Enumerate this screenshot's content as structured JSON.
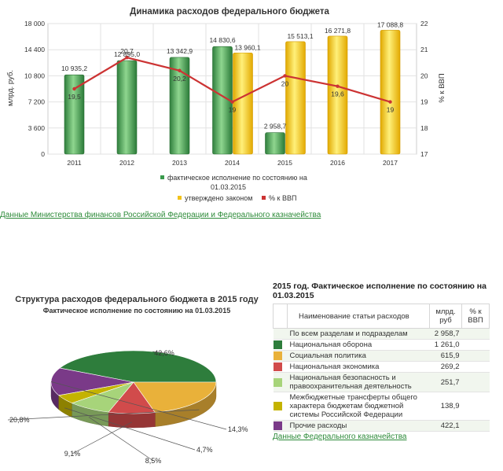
{
  "bar_chart": {
    "title": "Динамика расходов федерального бюджета",
    "ylabel_left": "млрд. руб.",
    "ylabel_right": "% к ВВП",
    "left_ticks": [
      "0",
      "3 600",
      "7 200",
      "10 800",
      "14 400",
      "18 000"
    ],
    "right_ticks": [
      "17",
      "18",
      "19",
      "20",
      "21",
      "22"
    ],
    "legend": {
      "actual": "фактическое исполнение по состоянию на 01.03.2015",
      "approved": "утверждено законом",
      "gdp": "% к ВВП"
    },
    "colors": {
      "actual": "#3a9a4c",
      "approved": "#f2c21a",
      "gdp": "#cc3333"
    }
  },
  "source_link_1": "Данные Министерства финансов Российской Федерации и Федерального казначейства",
  "pie_chart": {
    "title": "Структура расходов федерального бюджета в 2015 году",
    "subtitle": "Фактическое исполнение по состоянию на 01.03.2015"
  },
  "table": {
    "title": "2015 год. Фактическое исполнение по состоянию на 01.03.2015",
    "headers": {
      "name": "Наименование статьи расходов",
      "value": "млрд. руб",
      "pct": "% к ВВП"
    },
    "rows": [
      {
        "name": "По всем разделам и подразделам",
        "value": "2 958,7",
        "color": ""
      },
      {
        "name": "Национальная оборона",
        "value": "1 261,0",
        "color": "#2e7d3c"
      },
      {
        "name": "Социальная политика",
        "value": "615,9",
        "color": "#e9b13a"
      },
      {
        "name": "Национальная экономика",
        "value": "269,2",
        "color": "#d14b4b"
      },
      {
        "name": "Национальная безопасность и правоохранительная деятельность",
        "value": "251,7",
        "color": "#a7d47a"
      },
      {
        "name": "Межбюджетные трансферты общего характера бюджетам бюджетной системы Российской Федерации",
        "value": "138,9",
        "color": "#c4b300"
      },
      {
        "name": "Прочие расходы",
        "value": "422,1",
        "color": "#7a3a88"
      }
    ]
  },
  "source_link_2": "Данные Федерального казначейства",
  "chart_data": [
    {
      "type": "bar",
      "title": "Динамика расходов федерального бюджета",
      "categories": [
        "2011",
        "2012",
        "2013",
        "2014",
        "2015",
        "2016",
        "2017"
      ],
      "ylabel": "млрд. руб.",
      "y2label": "% к ВВП",
      "ylim": [
        0,
        18000
      ],
      "y2lim": [
        17,
        22
      ],
      "series": [
        {
          "name": "фактическое исполнение по состоянию на 01.03.2015",
          "kind": "bar",
          "values": [
            10935.2,
            12895.0,
            13342.9,
            14830.6,
            2958.7,
            null,
            null
          ],
          "labels": [
            "10 935,2",
            "12 895,0",
            "13 342,9",
            "14 830,6",
            "2 958,7",
            "",
            ""
          ]
        },
        {
          "name": "утверждено законом",
          "kind": "bar",
          "values": [
            null,
            null,
            null,
            13960.1,
            15513.1,
            16271.8,
            17088.8
          ],
          "labels": [
            "",
            "",
            "",
            "13 960,1",
            "15 513,1",
            "16 271,8",
            "17 088,8"
          ]
        },
        {
          "name": "% к ВВП",
          "kind": "line",
          "axis": "right",
          "values": [
            19.5,
            20.7,
            20.2,
            19,
            20,
            19.6,
            19
          ],
          "labels": [
            "19,5",
            "20,7",
            "20,2",
            "19",
            "20",
            "19,6",
            "19"
          ]
        }
      ],
      "grid": true,
      "legend_position": "bottom"
    },
    {
      "type": "pie",
      "title": "Структура расходов федерального бюджета в 2015 году",
      "subtitle": "Фактическое исполнение по состоянию на 01.03.2015",
      "slices": [
        {
          "label": "42,6%",
          "value": 42.6,
          "color": "#2e7d3c"
        },
        {
          "label": "14,3%",
          "value": 14.3,
          "color": "#7a3a88"
        },
        {
          "label": "4,7%",
          "value": 4.7,
          "color": "#c4b300"
        },
        {
          "label": "8,5%",
          "value": 8.5,
          "color": "#a7d47a"
        },
        {
          "label": "9,1%",
          "value": 9.1,
          "color": "#d14b4b"
        },
        {
          "label": "20,8%",
          "value": 20.8,
          "color": "#e9b13a"
        }
      ]
    }
  ]
}
